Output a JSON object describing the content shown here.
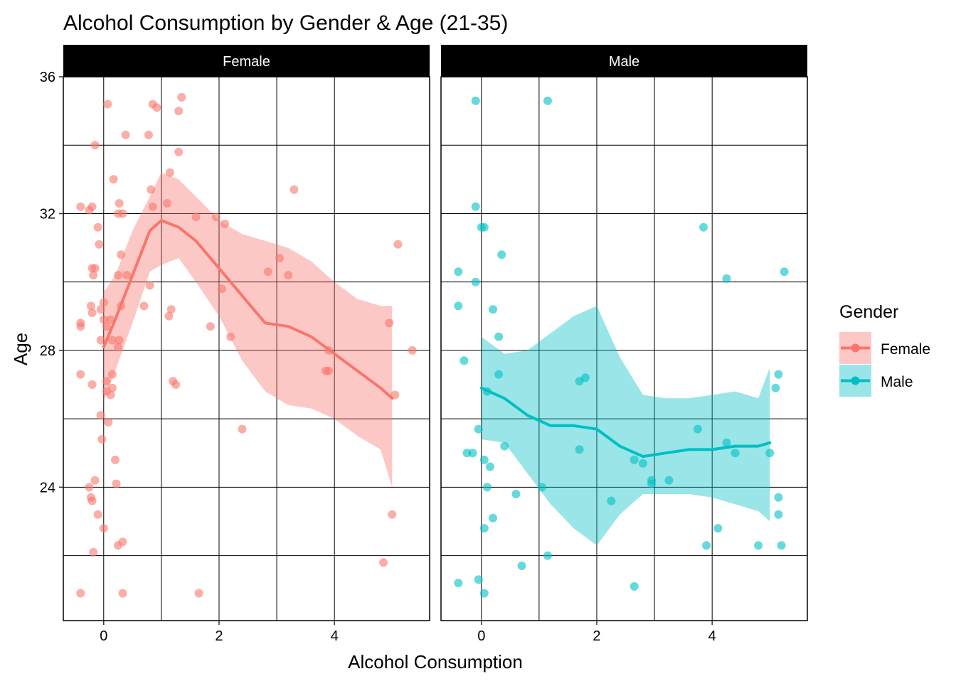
{
  "chart_data": {
    "type": "scatter",
    "title": "Alcohol Consumption by Gender & Age (21-35)",
    "xlabel": "Alcohol Consumption",
    "ylabel": "Age",
    "xlim": [
      -0.7,
      5.65
    ],
    "ylim": [
      20.1,
      36.0
    ],
    "x_ticks": [
      0,
      2,
      4
    ],
    "x_tick_labels": [
      "0",
      "2",
      "4"
    ],
    "y_ticks": [
      24,
      28,
      32,
      36
    ],
    "y_tick_labels": [
      "24",
      "28",
      "32",
      "36"
    ],
    "grid": "major and minor",
    "legend": {
      "title": "Gender",
      "placement": "right",
      "entries": [
        {
          "label": "Female",
          "color": "#F8766D"
        },
        {
          "label": "Male",
          "color": "#00BFC4"
        }
      ]
    },
    "facets": [
      {
        "label": "Female",
        "color": "#F8766D",
        "points": [
          [
            -0.4,
            32.2
          ],
          [
            -0.25,
            32.1
          ],
          [
            -0.2,
            32.2
          ],
          [
            -0.1,
            31.6
          ],
          [
            -0.08,
            31.1
          ],
          [
            -0.2,
            30.4
          ],
          [
            -0.15,
            30.4
          ],
          [
            -0.18,
            30.2
          ],
          [
            -0.4,
            28.8
          ],
          [
            -0.4,
            28.7
          ],
          [
            -0.22,
            29.3
          ],
          [
            -0.2,
            29.1
          ],
          [
            -0.05,
            29.2
          ],
          [
            0.0,
            29.4
          ],
          [
            0.0,
            28.9
          ],
          [
            0.05,
            28.7
          ],
          [
            0.12,
            28.9
          ],
          [
            -0.05,
            28.3
          ],
          [
            0.15,
            28.3
          ],
          [
            0.25,
            28.1
          ],
          [
            -0.4,
            27.3
          ],
          [
            -0.2,
            27.0
          ],
          [
            0.15,
            27.3
          ],
          [
            0.05,
            27.1
          ],
          [
            0.05,
            26.8
          ],
          [
            0.15,
            26.9
          ],
          [
            0.12,
            26.7
          ],
          [
            -0.05,
            26.1
          ],
          [
            0.08,
            25.9
          ],
          [
            -0.03,
            25.4
          ],
          [
            0.2,
            24.8
          ],
          [
            -0.15,
            24.2
          ],
          [
            -0.25,
            24.0
          ],
          [
            0.22,
            24.1
          ],
          [
            -0.22,
            23.7
          ],
          [
            -0.2,
            23.6
          ],
          [
            -0.1,
            23.2
          ],
          [
            0.0,
            22.8
          ],
          [
            0.25,
            22.3
          ],
          [
            0.33,
            22.4
          ],
          [
            -0.18,
            22.1
          ],
          [
            -0.4,
            20.9
          ],
          [
            0.33,
            20.9
          ],
          [
            0.07,
            35.2
          ],
          [
            -0.15,
            34.0
          ],
          [
            0.38,
            34.3
          ],
          [
            0.17,
            33.0
          ],
          [
            0.27,
            32.3
          ],
          [
            0.25,
            32.0
          ],
          [
            0.33,
            32.0
          ],
          [
            0.3,
            30.8
          ],
          [
            0.4,
            30.2
          ],
          [
            0.25,
            30.2
          ],
          [
            0.3,
            29.3
          ],
          [
            0.27,
            28.3
          ],
          [
            0.78,
            34.3
          ],
          [
            0.85,
            35.2
          ],
          [
            0.92,
            35.1
          ],
          [
            1.35,
            35.4
          ],
          [
            1.3,
            35.0
          ],
          [
            1.3,
            33.8
          ],
          [
            1.15,
            33.2
          ],
          [
            0.82,
            32.7
          ],
          [
            1.1,
            32.3
          ],
          [
            0.85,
            32.2
          ],
          [
            0.8,
            29.9
          ],
          [
            0.7,
            29.3
          ],
          [
            1.17,
            29.2
          ],
          [
            1.13,
            29.0
          ],
          [
            1.2,
            27.1
          ],
          [
            1.25,
            27.0
          ],
          [
            1.6,
            31.9
          ],
          [
            1.95,
            31.9
          ],
          [
            2.1,
            31.7
          ],
          [
            2.05,
            29.8
          ],
          [
            1.85,
            28.7
          ],
          [
            2.2,
            28.4
          ],
          [
            2.4,
            25.7
          ],
          [
            1.65,
            20.9
          ],
          [
            2.85,
            30.3
          ],
          [
            3.05,
            30.7
          ],
          [
            3.2,
            30.2
          ],
          [
            3.3,
            32.7
          ],
          [
            3.9,
            28.0
          ],
          [
            3.85,
            27.4
          ],
          [
            3.9,
            27.4
          ],
          [
            4.85,
            21.8
          ],
          [
            4.95,
            28.8
          ],
          [
            5.0,
            23.2
          ],
          [
            5.05,
            26.7
          ],
          [
            5.1,
            31.1
          ],
          [
            5.35,
            28.0
          ]
        ],
        "smooth_x": [
          0.0,
          0.2,
          0.5,
          0.8,
          1.0,
          1.3,
          1.6,
          2.0,
          2.4,
          2.8,
          3.2,
          3.6,
          4.0,
          4.4,
          4.8,
          5.0
        ],
        "smooth_y": [
          28.1,
          28.9,
          30.2,
          31.5,
          31.8,
          31.6,
          31.2,
          30.4,
          29.6,
          28.8,
          28.7,
          28.4,
          27.9,
          27.4,
          26.9,
          26.6
        ],
        "band_lower": [
          26.5,
          27.4,
          28.8,
          30.3,
          30.5,
          30.7,
          30.0,
          29.0,
          27.7,
          26.8,
          26.4,
          26.3,
          26.0,
          25.5,
          25.1,
          24.0
        ],
        "band_upper": [
          29.7,
          30.2,
          31.5,
          32.5,
          33.2,
          33.0,
          32.5,
          31.8,
          31.4,
          31.2,
          31.0,
          30.6,
          30.0,
          29.5,
          29.3,
          29.3
        ]
      },
      {
        "label": "Male",
        "color": "#00BFC4",
        "points": [
          [
            -0.1,
            35.3
          ],
          [
            1.15,
            35.3
          ],
          [
            -0.1,
            32.2
          ],
          [
            0.0,
            31.6
          ],
          [
            0.05,
            31.6
          ],
          [
            0.35,
            30.8
          ],
          [
            -0.4,
            30.3
          ],
          [
            -0.1,
            30.0
          ],
          [
            -0.4,
            29.3
          ],
          [
            0.2,
            29.2
          ],
          [
            0.3,
            28.4
          ],
          [
            -0.3,
            27.7
          ],
          [
            0.3,
            27.3
          ],
          [
            0.1,
            26.8
          ],
          [
            -0.05,
            25.7
          ],
          [
            0.4,
            25.2
          ],
          [
            -0.25,
            25.0
          ],
          [
            -0.15,
            25.0
          ],
          [
            0.05,
            24.8
          ],
          [
            0.15,
            24.6
          ],
          [
            0.1,
            24.0
          ],
          [
            0.6,
            23.8
          ],
          [
            0.2,
            23.1
          ],
          [
            0.05,
            22.8
          ],
          [
            0.7,
            21.7
          ],
          [
            -0.4,
            21.2
          ],
          [
            -0.05,
            21.3
          ],
          [
            0.05,
            20.9
          ],
          [
            1.05,
            24.0
          ],
          [
            1.15,
            22.0
          ],
          [
            1.7,
            27.1
          ],
          [
            1.8,
            27.2
          ],
          [
            1.7,
            25.1
          ],
          [
            2.25,
            23.6
          ],
          [
            2.65,
            24.8
          ],
          [
            2.8,
            24.7
          ],
          [
            2.95,
            24.2
          ],
          [
            2.95,
            24.1
          ],
          [
            3.25,
            24.2
          ],
          [
            2.65,
            21.1
          ],
          [
            3.75,
            25.7
          ],
          [
            3.85,
            31.6
          ],
          [
            4.25,
            30.1
          ],
          [
            4.25,
            25.3
          ],
          [
            4.4,
            25.0
          ],
          [
            4.1,
            22.8
          ],
          [
            3.9,
            22.3
          ],
          [
            4.8,
            22.3
          ],
          [
            5.0,
            25.0
          ],
          [
            5.1,
            26.9
          ],
          [
            5.15,
            27.3
          ],
          [
            5.15,
            23.7
          ],
          [
            5.15,
            23.2
          ],
          [
            5.2,
            22.3
          ],
          [
            5.25,
            30.3
          ]
        ],
        "smooth_x": [
          0.0,
          0.4,
          0.8,
          1.2,
          1.6,
          2.0,
          2.4,
          2.8,
          3.2,
          3.6,
          4.0,
          4.4,
          4.8,
          5.0
        ],
        "smooth_y": [
          26.9,
          26.6,
          26.1,
          25.8,
          25.8,
          25.7,
          25.2,
          24.9,
          25.0,
          25.1,
          25.1,
          25.2,
          25.2,
          25.3
        ],
        "band_lower": [
          25.4,
          25.3,
          24.4,
          23.5,
          22.8,
          22.3,
          23.2,
          23.8,
          23.8,
          23.8,
          23.7,
          23.5,
          23.3,
          23.0
        ],
        "band_upper": [
          28.4,
          27.9,
          28.0,
          28.5,
          29.0,
          29.3,
          27.8,
          26.7,
          26.6,
          26.6,
          26.7,
          26.8,
          26.6,
          27.5
        ]
      }
    ]
  }
}
